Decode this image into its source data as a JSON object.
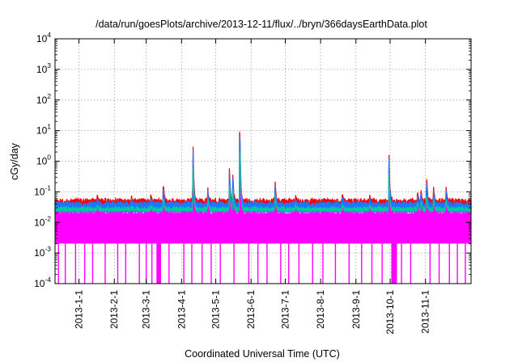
{
  "chart_data": {
    "type": "line",
    "title": "/data/run/goesPlots/archive/2013-12-11/flux/../bryn/366daysEarthData.plot",
    "xlabel": "Coordinated Universal Time (UTC)",
    "ylabel": "cGy/day",
    "y_scale": "log",
    "ylim": [
      0.0001,
      10000
    ],
    "xlim": [
      "2012-12-11",
      "2013-12-11"
    ],
    "y_ticks": [
      {
        "base": "10",
        "exp": "-4",
        "value": 0.0001
      },
      {
        "base": "10",
        "exp": "-3",
        "value": 0.001
      },
      {
        "base": "10",
        "exp": "-2",
        "value": 0.01
      },
      {
        "base": "10",
        "exp": "-1",
        "value": 0.1
      },
      {
        "base": "10",
        "exp": "0",
        "value": 1
      },
      {
        "base": "10",
        "exp": "1",
        "value": 10
      },
      {
        "base": "10",
        "exp": "2",
        "value": 100
      },
      {
        "base": "10",
        "exp": "3",
        "value": 1000
      },
      {
        "base": "10",
        "exp": "4",
        "value": 10000
      }
    ],
    "x_ticks": [
      "2013-1-1",
      "2013-2-1",
      "2013-3-1",
      "2013-4-1",
      "2013-5-1",
      "2013-6-1",
      "2013-7-1",
      "2013-8-1",
      "2013-9-1",
      "2013-10-1",
      "2013-11-1"
    ],
    "grid": true,
    "legend": "none",
    "series_baselines": [
      {
        "color": "#ff0000",
        "value": 0.05
      },
      {
        "color": "#1e78ff",
        "value": 0.04
      },
      {
        "color": "#00c8a0",
        "value": 0.028
      },
      {
        "color": "#ff00ff",
        "value": 0.005,
        "low": 0.0021,
        "high": 0.022
      }
    ],
    "events": [
      {
        "date": "2013-01-17",
        "red": 0.09,
        "blue": 0.07,
        "cyan": 0.04,
        "magenta": 0.03
      },
      {
        "date": "2013-02-16",
        "red": 0.075,
        "blue": 0.06,
        "cyan": 0.035,
        "magenta": 0.025
      },
      {
        "date": "2013-03-05",
        "red": 0.085,
        "blue": 0.07,
        "cyan": 0.04,
        "magenta": 0.03
      },
      {
        "date": "2013-03-16",
        "red": 0.23,
        "blue": 0.18,
        "cyan": 0.08,
        "magenta": 0.06
      },
      {
        "date": "2013-04-11",
        "red": 6.0,
        "blue": 4.5,
        "cyan": 1.0,
        "magenta": 0.5
      },
      {
        "date": "2013-04-24",
        "red": 0.15,
        "blue": 0.12,
        "cyan": 0.07,
        "magenta": 0.05
      },
      {
        "date": "2013-05-13",
        "red": 0.8,
        "blue": 0.6,
        "cyan": 0.2,
        "magenta": 0.12
      },
      {
        "date": "2013-05-16",
        "red": 0.5,
        "blue": 0.4,
        "cyan": 0.15,
        "magenta": 0.1
      },
      {
        "date": "2013-05-22",
        "red": 50,
        "blue": 35,
        "cyan": 8,
        "magenta": 3
      },
      {
        "date": "2013-06-22",
        "red": 0.28,
        "blue": 0.22,
        "cyan": 0.1,
        "magenta": 0.07
      },
      {
        "date": "2013-07-10",
        "red": 0.08,
        "blue": 0.06,
        "cyan": 0.04,
        "magenta": 0.03
      },
      {
        "date": "2013-08-20",
        "red": 0.1,
        "blue": 0.08,
        "cyan": 0.045,
        "magenta": 0.035
      },
      {
        "date": "2013-09-13",
        "red": 0.085,
        "blue": 0.07,
        "cyan": 0.04,
        "magenta": 0.03
      },
      {
        "date": "2013-09-30",
        "red": 1.7,
        "blue": 1.3,
        "cyan": 0.4,
        "magenta": 0.2
      },
      {
        "date": "2013-10-25",
        "red": 0.12,
        "blue": 0.1,
        "cyan": 0.05,
        "magenta": 0.04
      },
      {
        "date": "2013-10-28",
        "red": 0.15,
        "blue": 0.12,
        "cyan": 0.06,
        "magenta": 0.045
      },
      {
        "date": "2013-11-02",
        "red": 0.4,
        "blue": 0.3,
        "cyan": 0.1,
        "magenta": 0.06
      },
      {
        "date": "2013-11-08",
        "red": 0.18,
        "blue": 0.14,
        "cyan": 0.07,
        "magenta": 0.05
      },
      {
        "date": "2013-11-19",
        "red": 0.17,
        "blue": 0.13,
        "cyan": 0.06,
        "magenta": 0.05
      }
    ],
    "magenta_dropouts": [
      "2012-12-14",
      "2012-12-20",
      "2012-12-29",
      "2013-01-06",
      "2013-01-13",
      "2013-01-24",
      "2013-02-04",
      "2013-02-11",
      "2013-02-23",
      "2013-03-01",
      "2013-03-06",
      "2013-03-12",
      "2013-03-21",
      "2013-04-03",
      "2013-04-10",
      "2013-04-19",
      "2013-04-27",
      "2013-05-05",
      "2013-05-17",
      "2013-05-30",
      "2013-06-07",
      "2013-06-15",
      "2013-06-27",
      "2013-07-04",
      "2013-07-13",
      "2013-07-25",
      "2013-08-03",
      "2013-08-14",
      "2013-08-26",
      "2013-09-06",
      "2013-09-15",
      "2013-09-24",
      "2013-10-11",
      "2013-10-19",
      "2013-11-05",
      "2013-11-13",
      "2013-11-22",
      "2013-11-29",
      "2013-12-06"
    ],
    "magenta_dropout_bands": [
      [
        "2013-03-10",
        "2013-03-14"
      ],
      [
        "2013-10-02",
        "2013-10-07"
      ]
    ]
  }
}
